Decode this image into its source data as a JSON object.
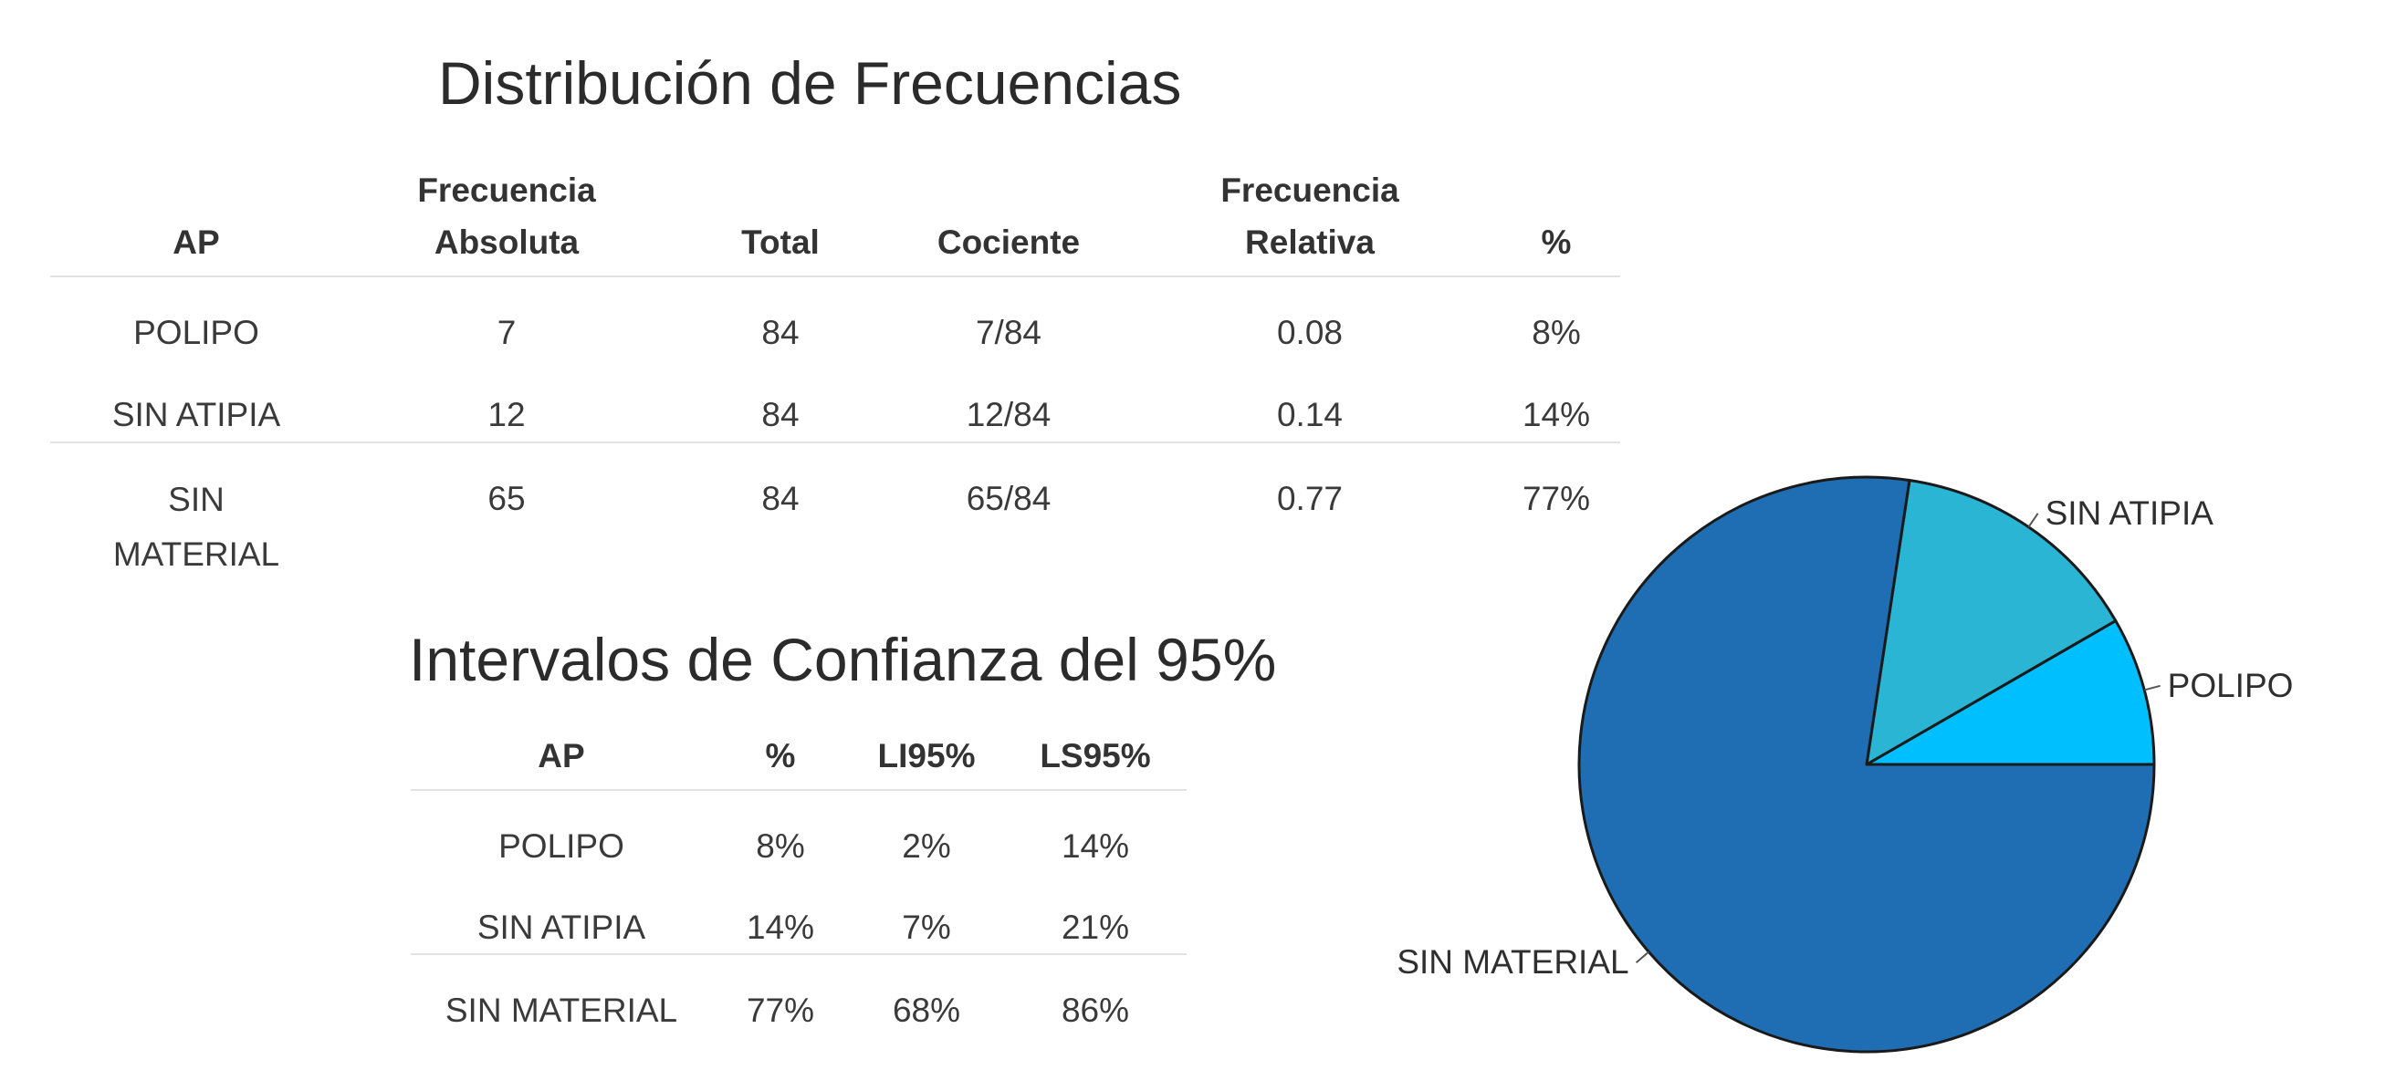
{
  "freq_table": {
    "title": "Distribución de Frecuencias",
    "headers": [
      "AP",
      "Frecuencia Absoluta",
      "Total",
      "Cociente",
      "Frecuencia Relativa",
      "%"
    ],
    "header_lines": [
      [
        "AP"
      ],
      [
        "Frecuencia",
        "Absoluta"
      ],
      [
        "Total"
      ],
      [
        "Cociente"
      ],
      [
        "Frecuencia",
        "Relativa"
      ],
      [
        "%"
      ]
    ],
    "rows": [
      [
        "POLIPO",
        "7",
        "84",
        "7/84",
        "0.08",
        "8%"
      ],
      [
        "SIN ATIPIA",
        "12",
        "84",
        "12/84",
        "0.14",
        "14%"
      ],
      [
        "SIN MATERIAL",
        "65",
        "84",
        "65/84",
        "0.77",
        "77%"
      ]
    ]
  },
  "ci_table": {
    "title": "Intervalos de Confianza del 95%",
    "headers": [
      "AP",
      "%",
      "LI95%",
      "LS95%"
    ],
    "rows": [
      [
        "POLIPO",
        "8%",
        "2%",
        "14%"
      ],
      [
        "SIN ATIPIA",
        "14%",
        "7%",
        "21%"
      ],
      [
        "SIN MATERIAL",
        "77%",
        "68%",
        "86%"
      ]
    ]
  },
  "chart_data": {
    "type": "pie",
    "categories": [
      "POLIPO",
      "SIN ATIPIA",
      "SIN MATERIAL"
    ],
    "values": [
      7,
      12,
      65
    ],
    "colors": [
      "#00bfff",
      "#29b5d3",
      "#1f6db3"
    ],
    "start_angle_deg": 0,
    "direction": "counterclockwise",
    "slice_stroke": "#1a1a1a"
  }
}
